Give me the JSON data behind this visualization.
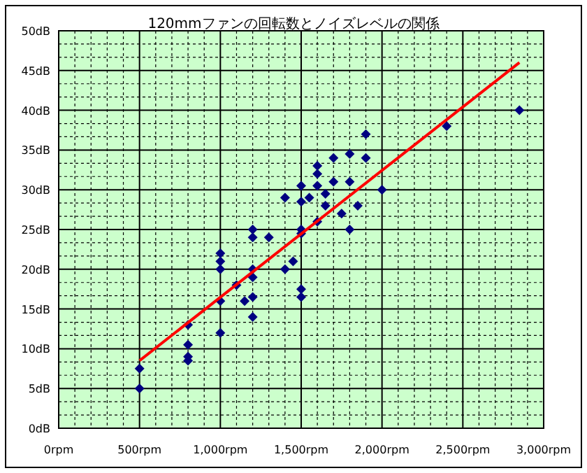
{
  "chart_data": {
    "type": "scatter",
    "title": "120mmファンの回転数とノイズレベルの関係",
    "xlim": [
      0,
      3000
    ],
    "ylim": [
      0,
      50
    ],
    "xticks": [
      {
        "value": 0,
        "label": "0rpm"
      },
      {
        "value": 500,
        "label": "500rpm"
      },
      {
        "value": 1000,
        "label": "1,000rpm"
      },
      {
        "value": 1500,
        "label": "1,500rpm"
      },
      {
        "value": 2000,
        "label": "2,000rpm"
      },
      {
        "value": 2500,
        "label": "2,500rpm"
      },
      {
        "value": 3000,
        "label": "3,000rpm"
      }
    ],
    "yticks": [
      {
        "value": 0,
        "label": "0dB"
      },
      {
        "value": 5,
        "label": "5dB"
      },
      {
        "value": 10,
        "label": "10dB"
      },
      {
        "value": 15,
        "label": "15dB"
      },
      {
        "value": 20,
        "label": "20dB"
      },
      {
        "value": 25,
        "label": "25dB"
      },
      {
        "value": 30,
        "label": "30dB"
      },
      {
        "value": 35,
        "label": "35dB"
      },
      {
        "value": 40,
        "label": "40dB"
      },
      {
        "value": 45,
        "label": "45dB"
      },
      {
        "value": 50,
        "label": "50dB"
      }
    ],
    "grid": true,
    "series": [
      {
        "color": "#000080",
        "marker": "diamond",
        "x": [
          500,
          500,
          800,
          800,
          800,
          800,
          1000,
          1000,
          1000,
          1000,
          1000,
          1100,
          1150,
          1200,
          1200,
          1200,
          1200,
          1200,
          1200,
          1300,
          1400,
          1400,
          1450,
          1500,
          1500,
          1500,
          1500,
          1500,
          1500,
          1550,
          1600,
          1600,
          1600,
          1600,
          1650,
          1650,
          1700,
          1700,
          1750,
          1800,
          1800,
          1800,
          1850,
          1900,
          1900,
          2000,
          2400,
          2850
        ],
        "values": [
          7.5,
          5,
          13,
          10.5,
          9,
          8.5,
          22,
          21,
          20,
          16,
          12,
          18,
          16,
          16.5,
          14,
          19,
          20,
          24,
          25,
          24,
          29,
          20,
          21,
          30.5,
          28.5,
          25,
          24.5,
          17.5,
          16.5,
          29,
          33,
          32,
          30.5,
          26,
          28,
          29.5,
          34,
          31,
          27,
          34.5,
          31,
          25,
          28,
          37,
          34,
          30,
          38,
          40
        ]
      },
      {
        "type": "line",
        "color": "#ff0000",
        "x": [
          500,
          2850
        ],
        "values": [
          8.5,
          46
        ]
      }
    ]
  }
}
